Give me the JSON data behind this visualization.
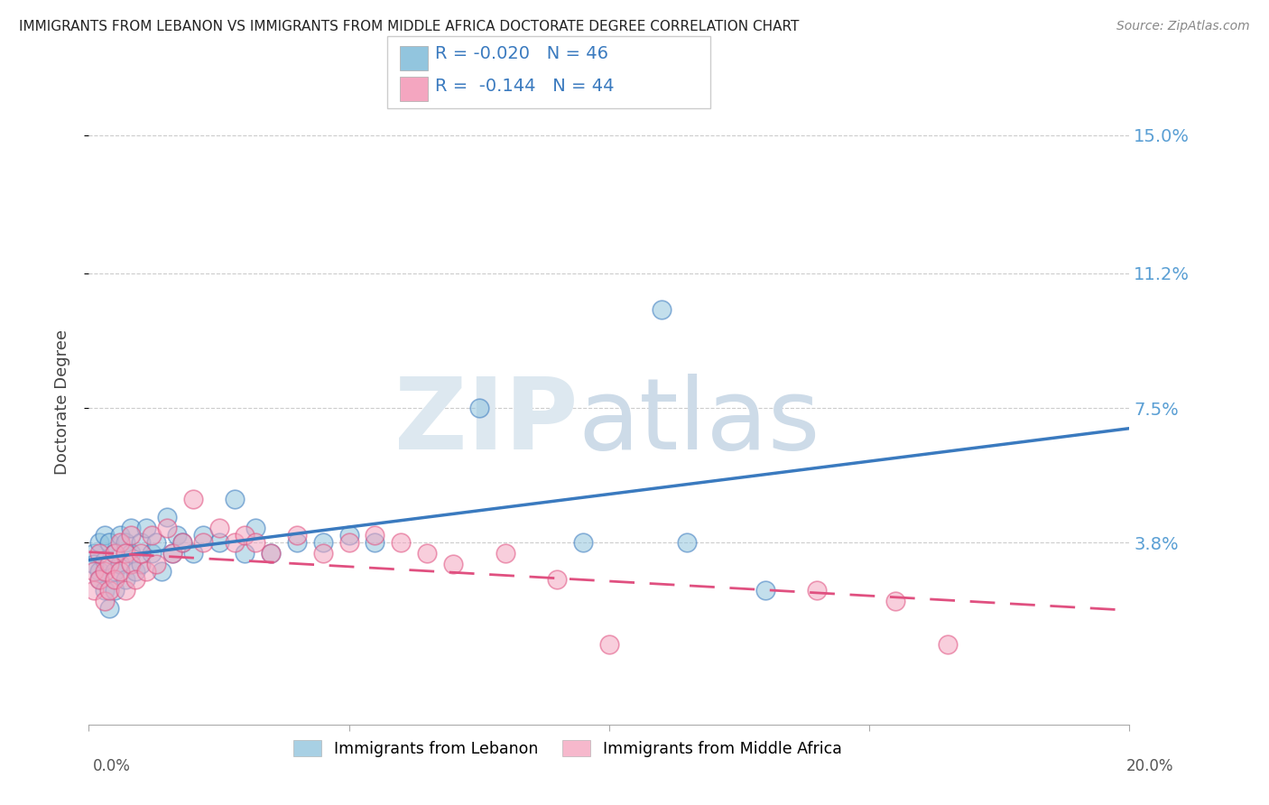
{
  "title": "IMMIGRANTS FROM LEBANON VS IMMIGRANTS FROM MIDDLE AFRICA DOCTORATE DEGREE CORRELATION CHART",
  "source": "Source: ZipAtlas.com",
  "ylabel": "Doctorate Degree",
  "ytick_labels": [
    "15.0%",
    "11.2%",
    "7.5%",
    "3.8%"
  ],
  "ytick_values": [
    0.15,
    0.112,
    0.075,
    0.038
  ],
  "xlim": [
    0.0,
    0.2
  ],
  "ylim": [
    -0.012,
    0.165
  ],
  "legend1_R": "-0.020",
  "legend1_N": "46",
  "legend2_R": "-0.144",
  "legend2_N": "44",
  "color_blue": "#92c5de",
  "color_pink": "#f4a6c0",
  "color_blue_line": "#3a7abf",
  "color_pink_line": "#e05080",
  "color_axis_right": "#5a9fd4",
  "lebanon_x": [
    0.001,
    0.001,
    0.002,
    0.002,
    0.002,
    0.003,
    0.003,
    0.003,
    0.004,
    0.004,
    0.005,
    0.005,
    0.005,
    0.006,
    0.006,
    0.007,
    0.007,
    0.008,
    0.008,
    0.009,
    0.01,
    0.01,
    0.011,
    0.012,
    0.013,
    0.014,
    0.015,
    0.016,
    0.017,
    0.018,
    0.02,
    0.022,
    0.025,
    0.028,
    0.03,
    0.032,
    0.035,
    0.04,
    0.045,
    0.05,
    0.055,
    0.075,
    0.095,
    0.11,
    0.115,
    0.13
  ],
  "lebanon_y": [
    0.035,
    0.032,
    0.03,
    0.038,
    0.028,
    0.033,
    0.04,
    0.025,
    0.038,
    0.02,
    0.035,
    0.03,
    0.025,
    0.04,
    0.032,
    0.038,
    0.028,
    0.042,
    0.035,
    0.03,
    0.038,
    0.032,
    0.042,
    0.035,
    0.038,
    0.03,
    0.045,
    0.035,
    0.04,
    0.038,
    0.035,
    0.04,
    0.038,
    0.05,
    0.035,
    0.042,
    0.035,
    0.038,
    0.038,
    0.04,
    0.038,
    0.075,
    0.038,
    0.102,
    0.038,
    0.025
  ],
  "middleafrica_x": [
    0.001,
    0.001,
    0.002,
    0.002,
    0.003,
    0.003,
    0.004,
    0.004,
    0.005,
    0.005,
    0.006,
    0.006,
    0.007,
    0.007,
    0.008,
    0.008,
    0.009,
    0.01,
    0.011,
    0.012,
    0.013,
    0.015,
    0.016,
    0.018,
    0.02,
    0.022,
    0.025,
    0.028,
    0.03,
    0.032,
    0.035,
    0.04,
    0.045,
    0.05,
    0.055,
    0.06,
    0.065,
    0.07,
    0.08,
    0.09,
    0.1,
    0.14,
    0.155,
    0.165
  ],
  "middleafrica_y": [
    0.03,
    0.025,
    0.028,
    0.035,
    0.03,
    0.022,
    0.032,
    0.025,
    0.035,
    0.028,
    0.038,
    0.03,
    0.035,
    0.025,
    0.032,
    0.04,
    0.028,
    0.035,
    0.03,
    0.04,
    0.032,
    0.042,
    0.035,
    0.038,
    0.05,
    0.038,
    0.042,
    0.038,
    0.04,
    0.038,
    0.035,
    0.04,
    0.035,
    0.038,
    0.04,
    0.038,
    0.035,
    0.032,
    0.035,
    0.028,
    0.01,
    0.025,
    0.022,
    0.01
  ]
}
